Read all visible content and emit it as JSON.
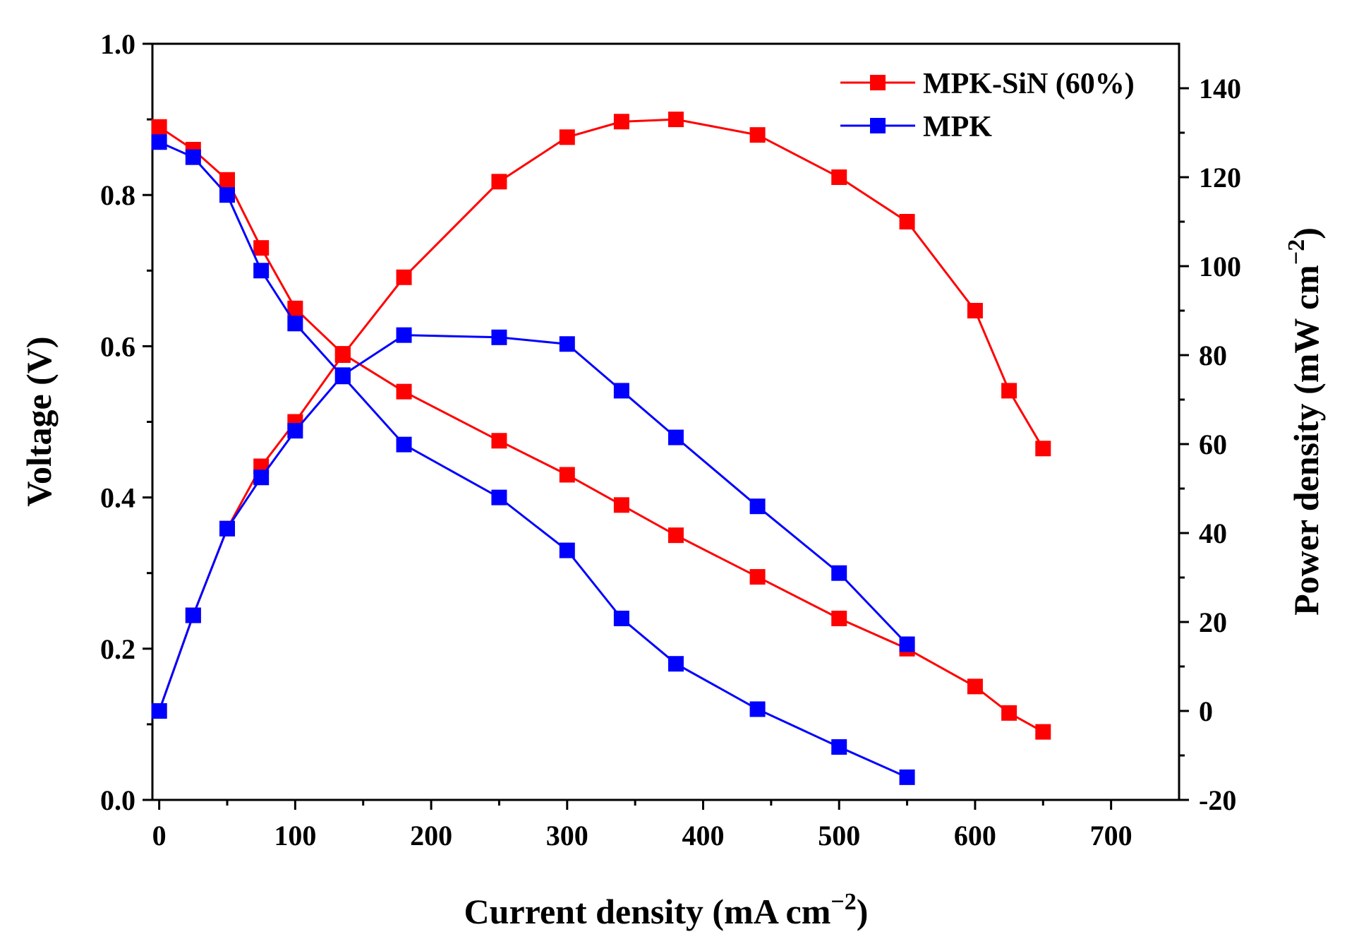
{
  "chart_data": {
    "type": "line",
    "title": "",
    "xlabel": "Current density (mA cm",
    "xlabel_sup": "−2",
    "xlabel_close": ")",
    "ylabel_left": "Voltage (V)",
    "ylabel_right": "Power density (mW cm",
    "ylabel_right_sup": "−2",
    "ylabel_right_close": ")",
    "xlim": [
      -5,
      750
    ],
    "ylim_left": [
      0.0,
      1.0
    ],
    "ylim_right": [
      -20,
      150
    ],
    "x_ticks": [
      0,
      100,
      200,
      300,
      400,
      500,
      600,
      700
    ],
    "x_tick_labels": [
      "0",
      "100",
      "200",
      "300",
      "400",
      "500",
      "600",
      "700"
    ],
    "y_left_ticks": [
      0.0,
      0.2,
      0.4,
      0.6,
      0.8,
      1.0
    ],
    "y_left_tick_labels": [
      "0.0",
      "0.2",
      "0.4",
      "0.6",
      "0.8",
      "1.0"
    ],
    "y_right_ticks": [
      -20,
      0,
      20,
      40,
      60,
      80,
      100,
      120,
      140
    ],
    "y_right_tick_labels": [
      "-20",
      "0",
      "20",
      "40",
      "60",
      "80",
      "100",
      "120",
      "140"
    ],
    "legend_position": "top-right",
    "series": [
      {
        "name": "MPK-SiN (60%)",
        "color": "#ff0000",
        "axis": "left",
        "kind": "voltage",
        "x": [
          0,
          25,
          50,
          75,
          100,
          135,
          180,
          250,
          300,
          340,
          380,
          440,
          500,
          550,
          600,
          625,
          650
        ],
        "y": [
          0.89,
          0.86,
          0.82,
          0.73,
          0.65,
          0.59,
          0.54,
          0.475,
          0.43,
          0.39,
          0.35,
          0.295,
          0.24,
          0.2,
          0.15,
          0.115,
          0.09
        ]
      },
      {
        "name": "MPK-SiN (60%)",
        "color": "#ff0000",
        "axis": "right",
        "kind": "power",
        "x": [
          0,
          25,
          50,
          75,
          100,
          135,
          180,
          250,
          300,
          340,
          380,
          440,
          500,
          550,
          600,
          625,
          650
        ],
        "y": [
          0,
          21.5,
          41,
          55,
          65,
          80,
          97.5,
          119,
          129,
          132.5,
          133,
          129.5,
          120,
          110,
          90,
          72,
          59
        ]
      },
      {
        "name": "MPK",
        "color": "#0000ff",
        "axis": "left",
        "kind": "voltage",
        "x": [
          0,
          25,
          50,
          75,
          100,
          135,
          180,
          250,
          300,
          340,
          380,
          440,
          500,
          550
        ],
        "y": [
          0.87,
          0.85,
          0.8,
          0.7,
          0.63,
          0.56,
          0.47,
          0.4,
          0.33,
          0.24,
          0.18,
          0.12,
          0.07,
          0.03
        ]
      },
      {
        "name": "MPK",
        "color": "#0000ff",
        "axis": "right",
        "kind": "power",
        "x": [
          0,
          25,
          50,
          75,
          100,
          135,
          180,
          250,
          300,
          340,
          380,
          440,
          500,
          550
        ],
        "y": [
          0,
          21.5,
          41,
          52.5,
          63,
          75.5,
          84.5,
          84,
          82.5,
          72,
          61.5,
          46,
          31,
          15
        ]
      }
    ],
    "legend": [
      {
        "label": "MPK-SiN (60%)",
        "color": "#ff0000"
      },
      {
        "label": "MPK",
        "color": "#0000ff"
      }
    ]
  }
}
